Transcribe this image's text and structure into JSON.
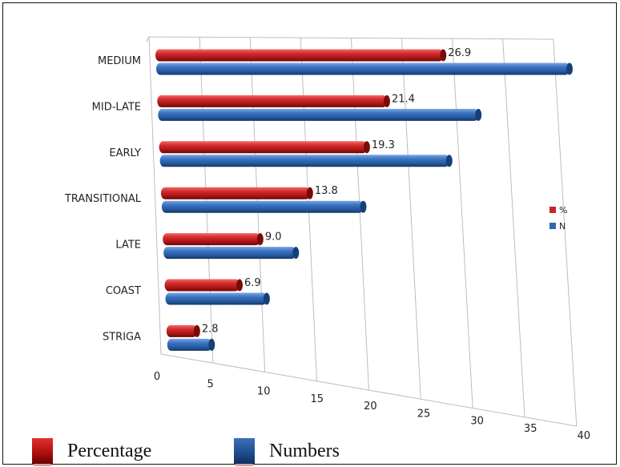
{
  "chart_data": {
    "type": "bar",
    "orientation": "horizontal",
    "categories": [
      "MEDIUM",
      "MID-LATE",
      "EARLY",
      "TRANSITIONAL",
      "LATE",
      "COAST",
      "STRIGA"
    ],
    "series": [
      {
        "name": "%",
        "color": "#c0282a",
        "values": [
          26.9,
          21.4,
          19.3,
          13.8,
          9.0,
          6.9,
          2.8
        ]
      },
      {
        "name": "N",
        "color": "#2f67b1",
        "values": [
          40,
          31,
          28,
          19.5,
          12.8,
          9.8,
          4.3
        ]
      }
    ],
    "data_labels": [
      "26.9",
      "21.4",
      "19.3",
      "13.8",
      "9.0",
      "6.9",
      "2.8"
    ],
    "x_ticks": [
      "0",
      "5",
      "10",
      "15",
      "20",
      "25",
      "30",
      "35",
      "40"
    ],
    "xlim": [
      0,
      40
    ],
    "grid": true,
    "legend_position": "right",
    "style": "3d-cylinder"
  },
  "bottom_legend": {
    "items": [
      {
        "label": "Percentage",
        "color": "#b01010"
      },
      {
        "label": "Numbers",
        "color": "#1f4f92"
      }
    ]
  }
}
